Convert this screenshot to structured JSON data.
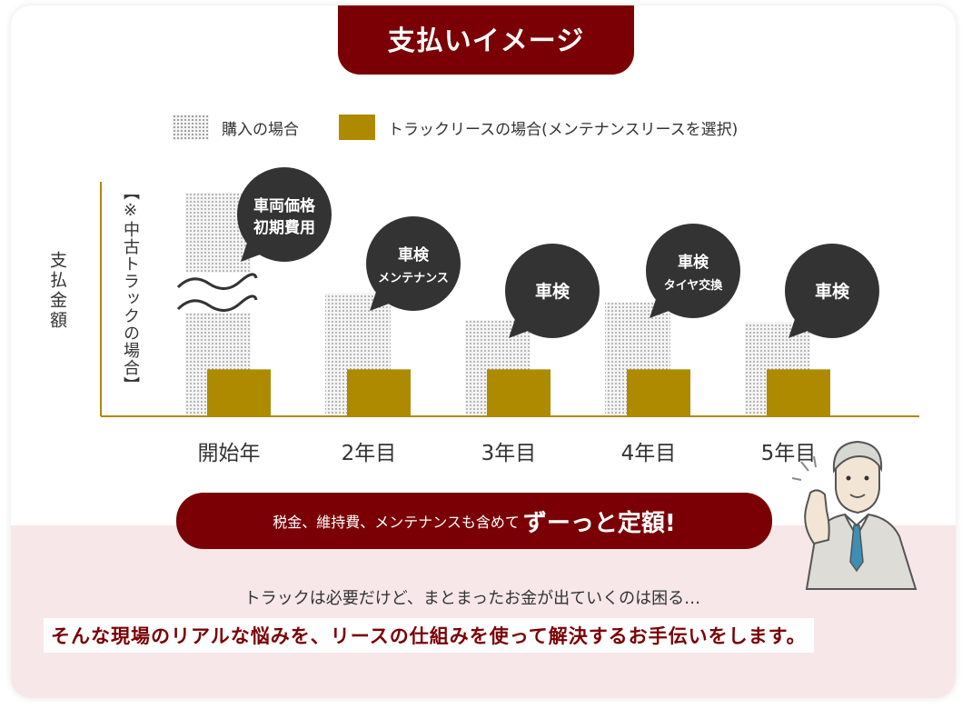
{
  "title": "支払いイメージ",
  "legend": {
    "purchase": "購入の場合",
    "lease": "トラックリースの場合(メンテナンスリースを選択)"
  },
  "y_axis_label": "支払金額",
  "note": "【※中古トラックの場合】",
  "colors": {
    "maroon": "#7a0005",
    "gold": "#ae8a00",
    "bubble": "#333333",
    "pink_band": "#f7e7e9"
  },
  "chart_data": {
    "type": "bar",
    "categories": [
      "開始年",
      "2年目",
      "3年目",
      "4年目",
      "5年目"
    ],
    "series": [
      {
        "name": "購入の場合",
        "values": [
          100,
          55,
          43,
          51,
          42
        ]
      },
      {
        "name": "トラックリースの場合(メンテナンスリースを選択)",
        "values": [
          21,
          21,
          21,
          21,
          21
        ]
      }
    ],
    "axis_break_on_first_bar": true,
    "annotations": [
      {
        "category": "開始年",
        "lines": [
          "車両価格",
          "初期費用"
        ]
      },
      {
        "category": "2年目",
        "lines": [
          "車検",
          "メンテナンス"
        ]
      },
      {
        "category": "3年目",
        "lines": [
          "車検"
        ]
      },
      {
        "category": "4年目",
        "lines": [
          "車検",
          "タイヤ交換"
        ]
      },
      {
        "category": "5年目",
        "lines": [
          "車検"
        ]
      }
    ],
    "ylim": [
      0,
      100
    ]
  },
  "message": {
    "small": "税金、維持費、メンテナンスも含めて",
    "big": "ずーっと定額!"
  },
  "subtext1": "トラックは必要だけど、まとまったお金が出ていくのは困る…",
  "subtext2": "そんな現場のリアルな悩みを、リースの仕組みを使って解決するお手伝いをします。"
}
